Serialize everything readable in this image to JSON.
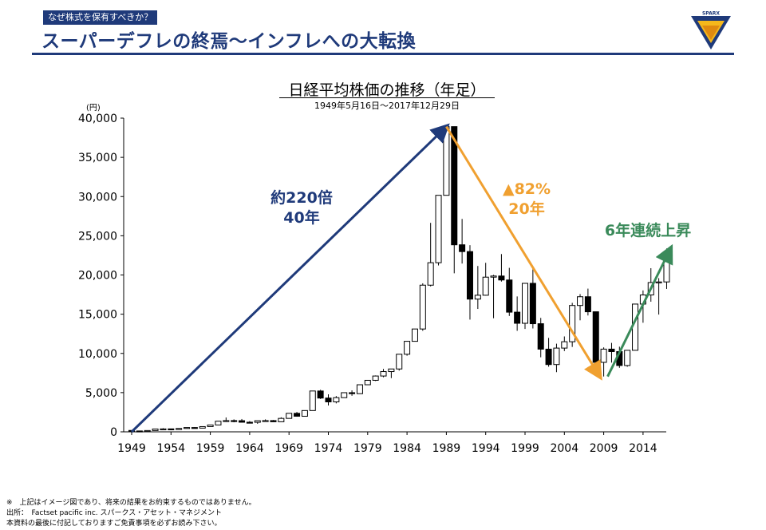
{
  "header": {
    "tag": "なぜ株式を保有すべきか？",
    "title": "スーパーデフレの終焉～インフレへの大転換",
    "logo_text": "SPARX"
  },
  "footnotes": [
    "※　上記はイメージ図であり、将来の結果をお約束するものではありません。",
    "出所：　Factset pacific inc. スパークス・アセット・マネジメント",
    "本資料の最後に付記しておりますご免責事項を必ずお読み下さい。"
  ],
  "chart_data": {
    "type": "candlestick",
    "title": "日経平均株価の推移（年足）",
    "subtitle": "1949年5月16日～2017年12月29日",
    "ylabel": "(円)",
    "ylim": [
      0,
      40000
    ],
    "xlim": [
      1949,
      2018
    ],
    "yticks": [
      "0",
      "5,000",
      "10,000",
      "15,000",
      "20,000",
      "25,000",
      "30,000",
      "35,000",
      "40,000"
    ],
    "xticks": [
      "1949",
      "1954",
      "1959",
      "1964",
      "1969",
      "1974",
      "1979",
      "1984",
      "1989",
      "1994",
      "1999",
      "2004",
      "2009",
      "2014"
    ],
    "candles": [
      {
        "year": 1949,
        "open": 176,
        "high": 176,
        "low": 85,
        "close": 110
      },
      {
        "year": 1950,
        "open": 110,
        "high": 115,
        "low": 85,
        "close": 101
      },
      {
        "year": 1951,
        "open": 101,
        "high": 166,
        "low": 98,
        "close": 166
      },
      {
        "year": 1952,
        "open": 166,
        "high": 362,
        "low": 160,
        "close": 362
      },
      {
        "year": 1953,
        "open": 362,
        "high": 474,
        "low": 295,
        "close": 377
      },
      {
        "year": 1954,
        "open": 377,
        "high": 379,
        "low": 315,
        "close": 356
      },
      {
        "year": 1955,
        "open": 356,
        "high": 425,
        "low": 355,
        "close": 425
      },
      {
        "year": 1956,
        "open": 425,
        "high": 549,
        "low": 425,
        "close": 549
      },
      {
        "year": 1957,
        "open": 549,
        "high": 595,
        "low": 471,
        "close": 474
      },
      {
        "year": 1958,
        "open": 474,
        "high": 666,
        "low": 474,
        "close": 666
      },
      {
        "year": 1959,
        "open": 666,
        "high": 874,
        "low": 666,
        "close": 874
      },
      {
        "year": 1960,
        "open": 874,
        "high": 1356,
        "low": 870,
        "close": 1356
      },
      {
        "year": 1961,
        "open": 1356,
        "high": 1829,
        "low": 1258,
        "close": 1432
      },
      {
        "year": 1962,
        "open": 1432,
        "high": 1589,
        "low": 1216,
        "close": 1420
      },
      {
        "year": 1963,
        "open": 1420,
        "high": 1634,
        "low": 1200,
        "close": 1225
      },
      {
        "year": 1964,
        "open": 1225,
        "high": 1369,
        "low": 1202,
        "close": 1216
      },
      {
        "year": 1965,
        "open": 1216,
        "high": 1417,
        "low": 1020,
        "close": 1417
      },
      {
        "year": 1966,
        "open": 1417,
        "high": 1588,
        "low": 1364,
        "close": 1432
      },
      {
        "year": 1967,
        "open": 1432,
        "high": 1506,
        "low": 1250,
        "close": 1283
      },
      {
        "year": 1968,
        "open": 1283,
        "high": 1851,
        "low": 1266,
        "close": 1714
      },
      {
        "year": 1969,
        "open": 1714,
        "high": 2358,
        "low": 1714,
        "close": 2358
      },
      {
        "year": 1970,
        "open": 2358,
        "high": 2534,
        "low": 1929,
        "close": 1987
      },
      {
        "year": 1971,
        "open": 1987,
        "high": 2740,
        "low": 1981,
        "close": 2714
      },
      {
        "year": 1972,
        "open": 2714,
        "high": 5207,
        "low": 2712,
        "close": 5207
      },
      {
        "year": 1973,
        "open": 5207,
        "high": 5359,
        "low": 4188,
        "close": 4306
      },
      {
        "year": 1974,
        "open": 4306,
        "high": 4787,
        "low": 3355,
        "close": 3817
      },
      {
        "year": 1975,
        "open": 3817,
        "high": 4564,
        "low": 3627,
        "close": 4358
      },
      {
        "year": 1976,
        "open": 4358,
        "high": 4990,
        "low": 4358,
        "close": 4990
      },
      {
        "year": 1977,
        "open": 4990,
        "high": 5287,
        "low": 4597,
        "close": 4866
      },
      {
        "year": 1978,
        "open": 4866,
        "high": 6002,
        "low": 4867,
        "close": 6002
      },
      {
        "year": 1979,
        "open": 6002,
        "high": 6590,
        "low": 5953,
        "close": 6569
      },
      {
        "year": 1980,
        "open": 6569,
        "high": 7188,
        "low": 6475,
        "close": 7116
      },
      {
        "year": 1981,
        "open": 7116,
        "high": 8019,
        "low": 6957,
        "close": 7682
      },
      {
        "year": 1982,
        "open": 7682,
        "high": 8016,
        "low": 6849,
        "close": 8016
      },
      {
        "year": 1983,
        "open": 8016,
        "high": 9893,
        "low": 7803,
        "close": 9893
      },
      {
        "year": 1984,
        "open": 9893,
        "high": 11577,
        "low": 9703,
        "close": 11542
      },
      {
        "year": 1985,
        "open": 11542,
        "high": 13129,
        "low": 11545,
        "close": 13113
      },
      {
        "year": 1986,
        "open": 13113,
        "high": 18936,
        "low": 12881,
        "close": 18701
      },
      {
        "year": 1987,
        "open": 18701,
        "high": 26646,
        "low": 18544,
        "close": 21564
      },
      {
        "year": 1988,
        "open": 21564,
        "high": 30159,
        "low": 21217,
        "close": 30159
      },
      {
        "year": 1989,
        "open": 30159,
        "high": 38916,
        "low": 30183,
        "close": 38916
      },
      {
        "year": 1990,
        "open": 38916,
        "high": 38713,
        "low": 20222,
        "close": 23849
      },
      {
        "year": 1991,
        "open": 23849,
        "high": 27147,
        "low": 21456,
        "close": 22984
      },
      {
        "year": 1992,
        "open": 22984,
        "high": 23801,
        "low": 14309,
        "close": 16925
      },
      {
        "year": 1993,
        "open": 16925,
        "high": 21148,
        "low": 15671,
        "close": 17417
      },
      {
        "year": 1994,
        "open": 17417,
        "high": 21552,
        "low": 17370,
        "close": 19723
      },
      {
        "year": 1995,
        "open": 19723,
        "high": 20012,
        "low": 14485,
        "close": 19868
      },
      {
        "year": 1996,
        "open": 19868,
        "high": 22666,
        "low": 19161,
        "close": 19361
      },
      {
        "year": 1997,
        "open": 19361,
        "high": 20910,
        "low": 14775,
        "close": 15259
      },
      {
        "year": 1998,
        "open": 15259,
        "high": 17264,
        "low": 12880,
        "close": 13842
      },
      {
        "year": 1999,
        "open": 13842,
        "high": 18934,
        "low": 13122,
        "close": 18934
      },
      {
        "year": 2000,
        "open": 18934,
        "high": 20833,
        "low": 13182,
        "close": 13786
      },
      {
        "year": 2001,
        "open": 13786,
        "high": 14529,
        "low": 9504,
        "close": 10543
      },
      {
        "year": 2002,
        "open": 10543,
        "high": 11979,
        "low": 8303,
        "close": 8579
      },
      {
        "year": 2003,
        "open": 8579,
        "high": 11238,
        "low": 7608,
        "close": 10677
      },
      {
        "year": 2004,
        "open": 10677,
        "high": 12163,
        "low": 10299,
        "close": 11489
      },
      {
        "year": 2005,
        "open": 11489,
        "high": 16445,
        "low": 10825,
        "close": 16111
      },
      {
        "year": 2006,
        "open": 16111,
        "high": 17563,
        "low": 14219,
        "close": 17226
      },
      {
        "year": 2007,
        "open": 17226,
        "high": 18262,
        "low": 14837,
        "close": 15308
      },
      {
        "year": 2008,
        "open": 15308,
        "high": 15156,
        "low": 7163,
        "close": 8860
      },
      {
        "year": 2009,
        "open": 8860,
        "high": 10767,
        "low": 7055,
        "close": 10546
      },
      {
        "year": 2010,
        "open": 10546,
        "high": 11339,
        "low": 8824,
        "close": 10229
      },
      {
        "year": 2011,
        "open": 10229,
        "high": 10857,
        "low": 8160,
        "close": 8455
      },
      {
        "year": 2012,
        "open": 8455,
        "high": 10395,
        "low": 8296,
        "close": 10395
      },
      {
        "year": 2013,
        "open": 10395,
        "high": 16291,
        "low": 10487,
        "close": 16291
      },
      {
        "year": 2014,
        "open": 16291,
        "high": 18030,
        "low": 13910,
        "close": 17451
      },
      {
        "year": 2015,
        "open": 17451,
        "high": 20868,
        "low": 16592,
        "close": 19034
      },
      {
        "year": 2016,
        "open": 19034,
        "high": 19592,
        "low": 14952,
        "close": 19114
      },
      {
        "year": 2017,
        "open": 19114,
        "high": 23382,
        "low": 18224,
        "close": 22765
      }
    ],
    "annotations": [
      {
        "text": "約220倍",
        "color": "#1f3a7a"
      },
      {
        "text": "40年",
        "color": "#1f3a7a"
      },
      {
        "text": "▲82%",
        "color": "#f0a030"
      },
      {
        "text": "20年",
        "color": "#f0a030"
      },
      {
        "text": "6年連続上昇",
        "color": "#3a8a5a"
      }
    ],
    "arrows": [
      {
        "from": [
          1949,
          0
        ],
        "to": [
          1989,
          38916
        ],
        "color": "#1f3a7a"
      },
      {
        "from": [
          1989,
          38916
        ],
        "to": [
          2008.5,
          7055
        ],
        "color": "#f0a030"
      },
      {
        "from": [
          2009.5,
          7055
        ],
        "to": [
          2017.5,
          23382
        ],
        "color": "#3a8a5a"
      }
    ]
  }
}
